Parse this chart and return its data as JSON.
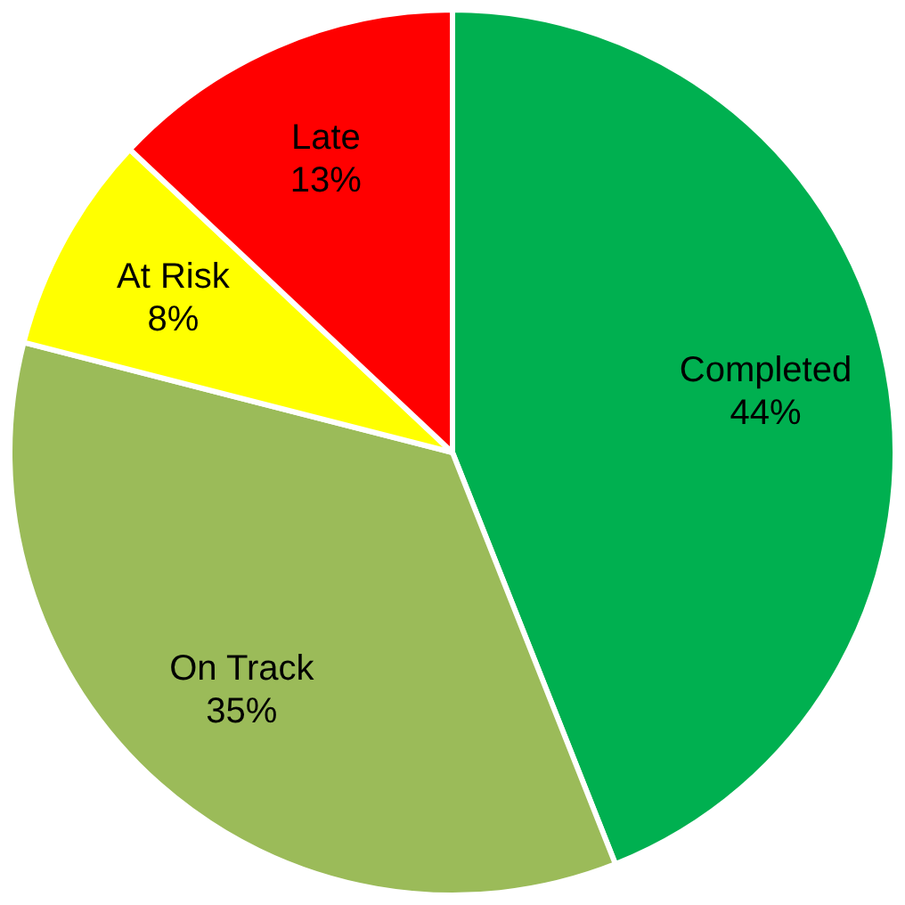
{
  "chart_data": {
    "type": "pie",
    "categories": [
      "Completed",
      "On Track",
      "At Risk",
      "Late"
    ],
    "values": [
      44,
      35,
      8,
      13
    ],
    "value_labels": [
      "44%",
      "35%",
      "8%",
      "13%"
    ],
    "colors": [
      "#00b050",
      "#9bbb59",
      "#ffff00",
      "#ff0000"
    ],
    "legend": false
  }
}
